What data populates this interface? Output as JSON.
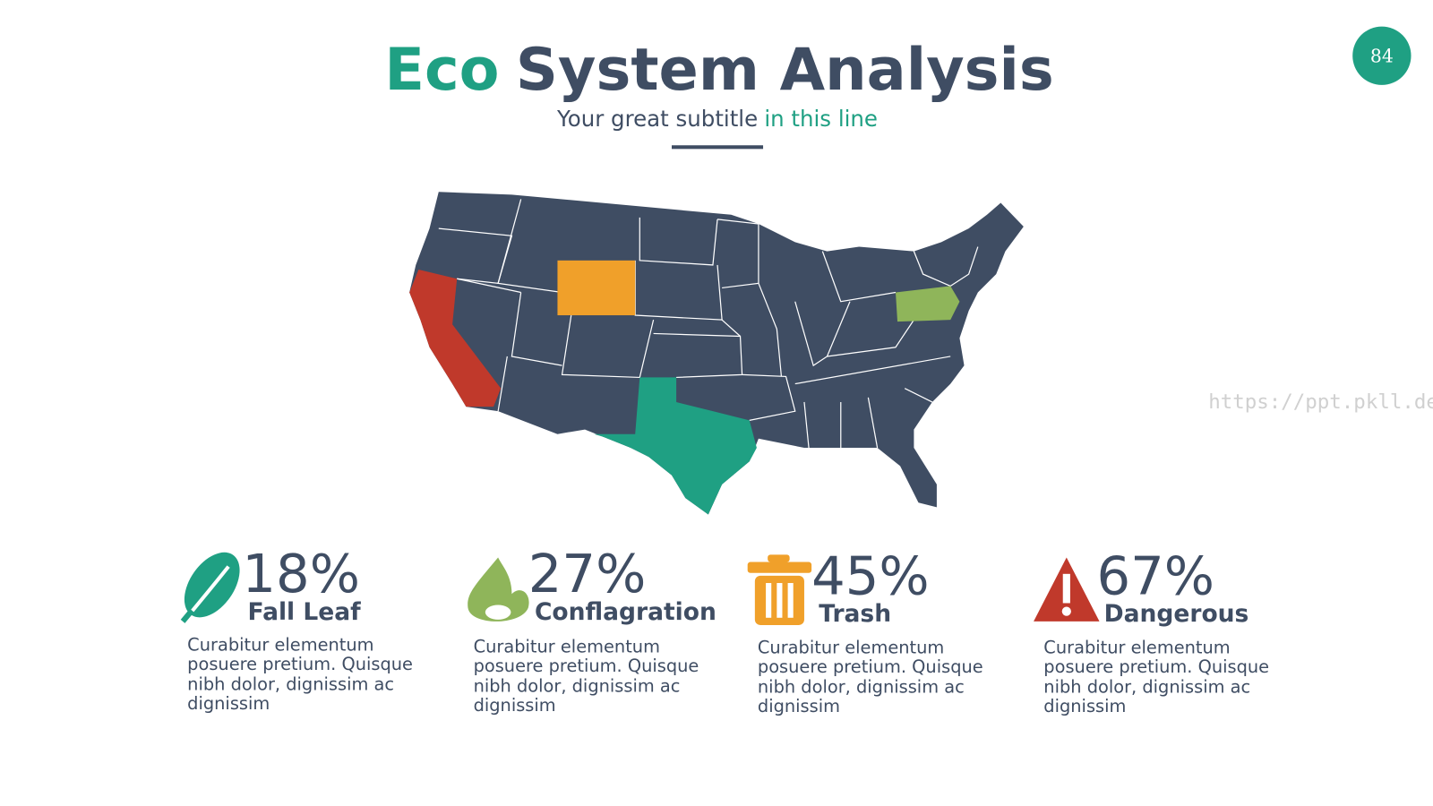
{
  "header": {
    "title_accent": "Eco",
    "title_main": "System Analysis",
    "subtitle_main": "Your great subtitle",
    "subtitle_accent": "in this line",
    "page_number": "84"
  },
  "watermark": "https://ppt.pkll.de",
  "items": [
    {
      "percent": "18%",
      "label": "Fall Leaf",
      "text": [
        "Curabitur elementum",
        "posuere pretium. Quisque",
        "nibh dolor, dignissim ac",
        "dignissim"
      ]
    },
    {
      "percent": "27%",
      "label": "Conflagration",
      "text": [
        "Curabitur elementum",
        "posuere pretium. Quisque",
        "nibh dolor, dignissim ac",
        "dignissim"
      ]
    },
    {
      "percent": "45%",
      "label": "Trash",
      "text": [
        "Curabitur elementum",
        "posuere pretium. Quisque",
        "nibh dolor, dignissim ac",
        "dignissim"
      ]
    },
    {
      "percent": "67%",
      "label": "Dangerous",
      "text": [
        "Curabitur elementum",
        "posuere pretium. Quisque",
        "nibh dolor, dignissim ac",
        "dignissim"
      ]
    }
  ]
}
